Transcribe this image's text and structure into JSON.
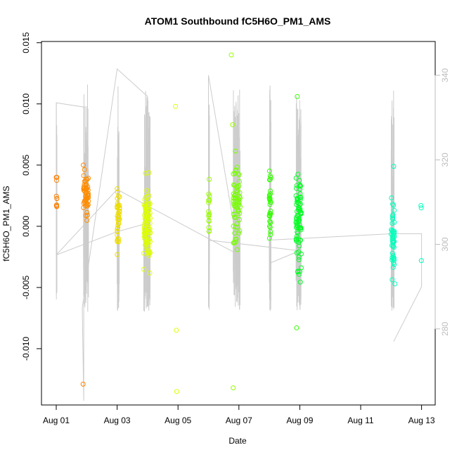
{
  "chart_data": {
    "type": "scatter",
    "title": "ATOM1 Southbound fC5H6O_PM1_AMS",
    "xlabel": "Date",
    "ylabel": "fC5H6O_PM1_AMS",
    "y2label": "",
    "xlim": [
      "2016-08-01",
      "2016-08-13"
    ],
    "ylim": [
      -0.0146,
      0.0151
    ],
    "y2lim": [
      262,
      348
    ],
    "x_ticks": [
      {
        "date": "2016-08-01",
        "label": "Aug 01"
      },
      {
        "date": "2016-08-03",
        "label": "Aug 03"
      },
      {
        "date": "2016-08-05",
        "label": "Aug 05"
      },
      {
        "date": "2016-08-07",
        "label": "Aug 07"
      },
      {
        "date": "2016-08-09",
        "label": "Aug 09"
      },
      {
        "date": "2016-08-11",
        "label": "Aug 11"
      },
      {
        "date": "2016-08-13",
        "label": "Aug 13"
      }
    ],
    "y_ticks": [
      {
        "value": -0.01,
        "label": "-0.010"
      },
      {
        "value": -0.005,
        "label": "-0.005"
      },
      {
        "value": 0.0,
        "label": "0.000"
      },
      {
        "value": 0.005,
        "label": "0.005"
      },
      {
        "value": 0.01,
        "label": "0.010"
      },
      {
        "value": 0.015,
        "label": "0.015"
      }
    ],
    "y2_ticks": [
      {
        "value": 280,
        "label": "280"
      },
      {
        "value": 300,
        "label": "300"
      },
      {
        "value": 320,
        "label": "320"
      },
      {
        "value": 340,
        "label": "340"
      }
    ],
    "grid": false,
    "legend": "none",
    "point_shape": "open-circle",
    "point_colors_by_day": [
      {
        "day": "2016-08-01",
        "color": "#ff8000"
      },
      {
        "day": "2016-08-02",
        "color": "#ff8c00"
      },
      {
        "day": "2016-08-03",
        "color": "#eedd00"
      },
      {
        "day": "2016-08-04",
        "color": "#ddff00"
      },
      {
        "day": "2016-08-06",
        "color": "#99ff00"
      },
      {
        "day": "2016-08-07",
        "color": "#77ff00"
      },
      {
        "day": "2016-08-08",
        "color": "#33ff00"
      },
      {
        "day": "2016-08-09",
        "color": "#00ff22"
      },
      {
        "day": "2016-08-12",
        "color": "#00ffbb"
      },
      {
        "day": "2016-08-13",
        "color": "#00ffc4"
      }
    ],
    "secondary_line_color": "#cccccc",
    "clusters": [
      {
        "day": "2016-08-01",
        "hour": 0.0,
        "width_h": 0.5,
        "y_min": 0.0,
        "y_max": 0.004,
        "n": 9,
        "color": "#ff8000"
      },
      {
        "day": "2016-08-01",
        "hour": 21.5,
        "width_h": 4.0,
        "y_min": -0.0009,
        "y_max": 0.005,
        "n": 50,
        "color": "#ff8c00"
      },
      {
        "day": "2016-08-03",
        "hour": 0.0,
        "width_h": 2.0,
        "y_min": -0.0035,
        "y_max": 0.0043,
        "n": 40,
        "color": "#eedd00"
      },
      {
        "day": "2016-08-03",
        "hour": 21.0,
        "width_h": 5.0,
        "y_min": -0.0057,
        "y_max": 0.0049,
        "n": 90,
        "color": "#ddff00"
      },
      {
        "day": "2016-08-06",
        "hour": 0.0,
        "width_h": 0.8,
        "y_min": -0.003,
        "y_max": 0.0049,
        "n": 16,
        "color": "#99ff00"
      },
      {
        "day": "2016-08-06",
        "hour": 19.5,
        "width_h": 5.5,
        "y_min": -0.0046,
        "y_max": 0.007,
        "n": 60,
        "color": "#77ff00"
      },
      {
        "day": "2016-08-08",
        "hour": 0.0,
        "width_h": 1.2,
        "y_min": -0.0032,
        "y_max": 0.0052,
        "n": 32,
        "color": "#33ff00"
      },
      {
        "day": "2016-08-08",
        "hour": 21.0,
        "width_h": 4.2,
        "y_min": -0.006,
        "y_max": 0.0055,
        "n": 80,
        "color": "#00ff22"
      },
      {
        "day": "2016-08-12",
        "hour": 0.0,
        "width_h": 2.5,
        "y_min": -0.0066,
        "y_max": 0.0032,
        "n": 45,
        "color": "#00ffbb"
      }
    ],
    "points": [
      {
        "x": "2016-08-01 00:00",
        "y": 0.004
      },
      {
        "x": "2016-08-01 21:20",
        "y": 0.005
      },
      {
        "x": "2016-08-01 21:10",
        "y": -0.0129
      },
      {
        "x": "2016-08-04 22:00",
        "y": 0.0098
      },
      {
        "x": "2016-08-04 22:40",
        "y": -0.0085
      },
      {
        "x": "2016-08-04 23:00",
        "y": -0.0135
      },
      {
        "x": "2016-08-06 18:00",
        "y": 0.014
      },
      {
        "x": "2016-08-06 19:00",
        "y": 0.0083
      },
      {
        "x": "2016-08-06 19:30",
        "y": -0.0132
      },
      {
        "x": "2016-08-08 22:00",
        "y": 0.0106
      },
      {
        "x": "2016-08-08 21:30",
        "y": -0.0083
      },
      {
        "x": "2016-08-12 02:00",
        "y": 0.0049
      },
      {
        "x": "2016-08-12 03:00",
        "y": -0.0047
      },
      {
        "x": "2016-08-12 23:30",
        "y": 0.0017
      },
      {
        "x": "2016-08-12 23:45",
        "y": 0.0015
      },
      {
        "x": "2016-08-12 23:50",
        "y": -0.0028
      }
    ],
    "secondary_series": [
      {
        "x": "2016-08-01 00:00",
        "y": 297.5
      },
      {
        "x": "2016-08-01 00:00",
        "y": 333.5
      },
      {
        "x": "2016-08-01 21:40",
        "y": 332.5
      },
      {
        "x": "2016-08-01 21:40",
        "y": 263
      },
      {
        "x": "2016-08-01 20:30",
        "y": 285
      },
      {
        "x": "2016-08-03 00:00",
        "y": 341.5
      },
      {
        "x": "2016-08-04 00:00",
        "y": 335
      },
      {
        "x": "2016-08-04 00:00",
        "y": 305
      },
      {
        "x": "2016-08-03 00:00",
        "y": 303
      },
      {
        "x": "2016-08-01 00:00",
        "y": 297.5
      },
      {
        "x": "2016-08-03 00:00",
        "y": 313
      },
      {
        "x": "2016-08-07 00:00",
        "y": 297.5
      },
      {
        "x": "2016-08-06 00:00",
        "y": 340
      },
      {
        "x": "2016-08-06 00:00",
        "y": 301
      },
      {
        "x": "2016-08-09 00:00",
        "y": 298.5
      },
      {
        "x": "2016-08-08 00:00",
        "y": 295.5
      },
      {
        "x": "2016-08-08 00:00",
        "y": 301
      },
      {
        "x": "2016-08-12 00:00",
        "y": 302.5
      },
      {
        "x": "2016-08-13 00:00",
        "y": 302.5
      },
      {
        "x": "2016-08-13 00:00",
        "y": 290
      },
      {
        "x": "2016-08-12 02:00",
        "y": 277
      }
    ]
  }
}
